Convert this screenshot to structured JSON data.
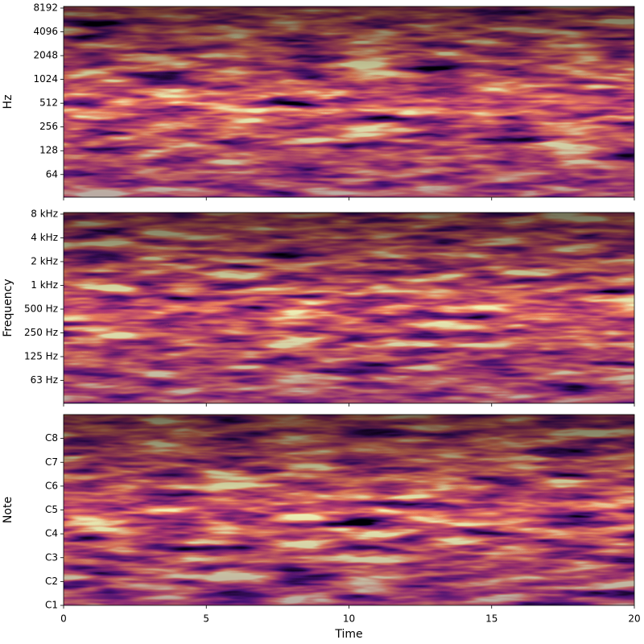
{
  "chart_data": [
    {
      "type": "heatmap",
      "ylabel": "Hz",
      "yscale": "log",
      "ylim": [
        33,
        8590
      ],
      "yticks": [
        64,
        128,
        256,
        512,
        1024,
        2048,
        4096,
        8192
      ],
      "xlim": [
        0,
        20
      ],
      "xticks": [
        0,
        5,
        10,
        15,
        20
      ]
    },
    {
      "type": "heatmap",
      "ylabel": "Frequency",
      "yscale": "log",
      "ylim": [
        32,
        8380
      ],
      "yticks": [
        {
          "value": 62.5,
          "label": "63 Hz"
        },
        {
          "value": 125,
          "label": "125 Hz"
        },
        {
          "value": 250,
          "label": "250 Hz"
        },
        {
          "value": 500,
          "label": "500 Hz"
        },
        {
          "value": 1000,
          "label": "1 kHz"
        },
        {
          "value": 2000,
          "label": "2 kHz"
        },
        {
          "value": 4000,
          "label": "4 kHz"
        },
        {
          "value": 8000,
          "label": "8 kHz"
        }
      ],
      "xlim": [
        0,
        20
      ],
      "xticks": [
        0,
        5,
        10,
        15,
        20
      ]
    },
    {
      "type": "heatmap",
      "ylabel": "Note",
      "yscale": "linear",
      "ylim": [
        24,
        120
      ],
      "yticks": [
        {
          "value": 24,
          "label": "C1"
        },
        {
          "value": 36,
          "label": "C2"
        },
        {
          "value": 48,
          "label": "C3"
        },
        {
          "value": 60,
          "label": "C4"
        },
        {
          "value": 72,
          "label": "C5"
        },
        {
          "value": 84,
          "label": "C6"
        },
        {
          "value": 96,
          "label": "C7"
        },
        {
          "value": 108,
          "label": "C8"
        }
      ],
      "xlim": [
        0,
        20
      ],
      "xticks": [
        0,
        5,
        10,
        15,
        20
      ],
      "xlabel": "Time"
    }
  ]
}
